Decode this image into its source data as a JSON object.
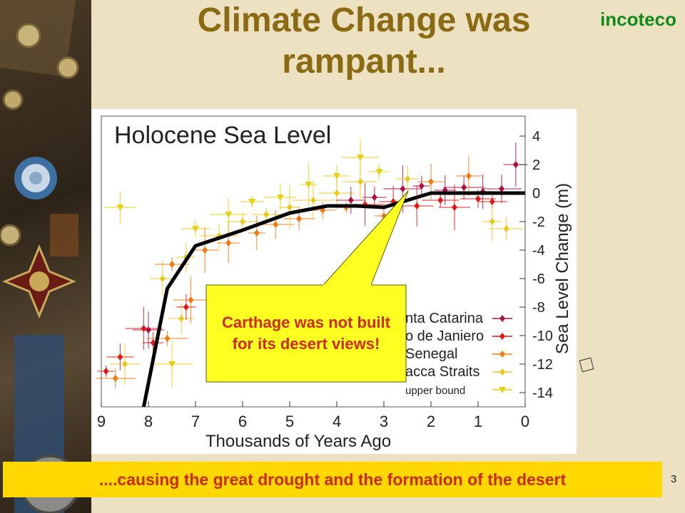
{
  "slide": {
    "title_line1": "Climate Change was",
    "title_line2": "rampant...",
    "brand": "incoteco",
    "callout": "Carthage was not built for its desert views!",
    "bottom_banner": "....causing the great drought and the formation of the desert",
    "page_number": "3"
  },
  "chart_data": {
    "type": "scatter",
    "title": "Holocene Sea Level",
    "xlabel": "Thousands of Years Ago",
    "ylabel": "Sea Level Change (m)",
    "xlim": [
      9,
      0
    ],
    "ylim": [
      -15,
      5
    ],
    "xticks": [
      9,
      8,
      7,
      6,
      5,
      4,
      3,
      2,
      1,
      0
    ],
    "yticks": [
      4,
      2,
      0,
      -2,
      -4,
      -6,
      -8,
      -10,
      -12,
      -14
    ],
    "legend_position": "bottom-right (partially covered by callout)",
    "legend_visible_text": [
      "nta Catarina",
      "o de Janiero",
      "Senegal",
      "acca Straits",
      "upper bound"
    ],
    "series": [
      {
        "name": "Santa Catarina",
        "color": "#b01040",
        "marker": "diamond"
      },
      {
        "name": "Rio de Janiero",
        "color": "#e01818",
        "marker": "diamond"
      },
      {
        "name": "Senegal",
        "color": "#f07a10",
        "marker": "diamond"
      },
      {
        "name": "Malacca Straits",
        "color": "#ecc818",
        "marker": "diamond"
      },
      {
        "name": "upper bound",
        "color": "#e8d010",
        "marker": "triangle-down"
      }
    ],
    "trend_line": {
      "color": "#000000",
      "x": [
        8.1,
        7.6,
        7.0,
        6.0,
        5.0,
        4.2,
        3.6,
        3.0,
        2.4,
        2.0,
        1.0,
        0.0
      ],
      "y": [
        -15.5,
        -6.7,
        -3.7,
        -2.6,
        -1.4,
        -0.9,
        -0.9,
        -1.0,
        -0.4,
        0.0,
        0.0,
        0.0
      ]
    },
    "scatter_samples": [
      {
        "series": 1,
        "x": 8.9,
        "y": -12.5
      },
      {
        "series": 1,
        "x": 8.6,
        "y": -11.5
      },
      {
        "series": 1,
        "x": 8.1,
        "y": -9.5
      },
      {
        "series": 1,
        "x": 7.9,
        "y": -10.5
      },
      {
        "series": 0,
        "x": 8.0,
        "y": -9.6
      },
      {
        "series": 2,
        "x": 7.6,
        "y": -10.2
      },
      {
        "series": 3,
        "x": 7.3,
        "y": -8.8
      },
      {
        "series": 2,
        "x": 7.1,
        "y": -7.5
      },
      {
        "series": 1,
        "x": 7.2,
        "y": -8.0
      },
      {
        "series": 3,
        "x": 8.5,
        "y": -12.0
      },
      {
        "series": 2,
        "x": 8.7,
        "y": -13.0
      },
      {
        "series": 3,
        "x": 7.7,
        "y": -6.0
      },
      {
        "series": 2,
        "x": 7.5,
        "y": -5.0
      },
      {
        "series": 3,
        "x": 7.2,
        "y": -4.5
      },
      {
        "series": 2,
        "x": 6.8,
        "y": -4.0
      },
      {
        "series": 3,
        "x": 6.5,
        "y": -3.0
      },
      {
        "series": 2,
        "x": 6.3,
        "y": -3.5
      },
      {
        "series": 3,
        "x": 6.0,
        "y": -2.0
      },
      {
        "series": 2,
        "x": 5.7,
        "y": -2.8
      },
      {
        "series": 3,
        "x": 5.5,
        "y": -1.5
      },
      {
        "series": 2,
        "x": 5.3,
        "y": -2.2
      },
      {
        "series": 3,
        "x": 5.0,
        "y": -1.0
      },
      {
        "series": 2,
        "x": 4.8,
        "y": -1.8
      },
      {
        "series": 3,
        "x": 4.5,
        "y": -0.5
      },
      {
        "series": 2,
        "x": 4.3,
        "y": -1.2
      },
      {
        "series": 3,
        "x": 4.0,
        "y": 0.0
      },
      {
        "series": 2,
        "x": 3.8,
        "y": -1.0
      },
      {
        "series": 0,
        "x": 3.7,
        "y": -0.5
      },
      {
        "series": 1,
        "x": 3.4,
        "y": -0.8
      },
      {
        "series": 0,
        "x": 3.2,
        "y": -0.3
      },
      {
        "series": 3,
        "x": 3.5,
        "y": 0.8
      },
      {
        "series": 2,
        "x": 3.0,
        "y": -1.6
      },
      {
        "series": 1,
        "x": 2.8,
        "y": -0.6
      },
      {
        "series": 0,
        "x": 2.6,
        "y": 0.3
      },
      {
        "series": 3,
        "x": 2.5,
        "y": 1.0
      },
      {
        "series": 1,
        "x": 2.3,
        "y": -0.9
      },
      {
        "series": 0,
        "x": 2.2,
        "y": 0.5
      },
      {
        "series": 2,
        "x": 2.0,
        "y": 0.8
      },
      {
        "series": 1,
        "x": 1.8,
        "y": -0.5
      },
      {
        "series": 0,
        "x": 1.7,
        "y": 0.2
      },
      {
        "series": 1,
        "x": 1.5,
        "y": -1.0
      },
      {
        "series": 0,
        "x": 1.3,
        "y": 0.4
      },
      {
        "series": 2,
        "x": 1.2,
        "y": 1.2
      },
      {
        "series": 1,
        "x": 1.0,
        "y": -0.4
      },
      {
        "series": 0,
        "x": 0.9,
        "y": 0.1
      },
      {
        "series": 1,
        "x": 0.7,
        "y": -0.6
      },
      {
        "series": 0,
        "x": 0.5,
        "y": 0.3
      },
      {
        "series": 0,
        "x": 0.2,
        "y": 2.0
      },
      {
        "series": 3,
        "x": 0.4,
        "y": -2.5
      },
      {
        "series": 3,
        "x": 0.7,
        "y": -2.0
      },
      {
        "series": 4,
        "x": 7.0,
        "y": -2.5
      },
      {
        "series": 4,
        "x": 6.3,
        "y": -1.5
      },
      {
        "series": 4,
        "x": 5.8,
        "y": -0.6
      },
      {
        "series": 4,
        "x": 5.2,
        "y": -0.3
      },
      {
        "series": 4,
        "x": 4.6,
        "y": 0.6
      },
      {
        "series": 4,
        "x": 4.0,
        "y": 1.2
      },
      {
        "series": 4,
        "x": 3.5,
        "y": 2.5
      },
      {
        "series": 4,
        "x": 3.1,
        "y": 1.5
      },
      {
        "series": 4,
        "x": 8.6,
        "y": -1.0
      },
      {
        "series": 4,
        "x": 7.5,
        "y": -12.0
      }
    ]
  }
}
